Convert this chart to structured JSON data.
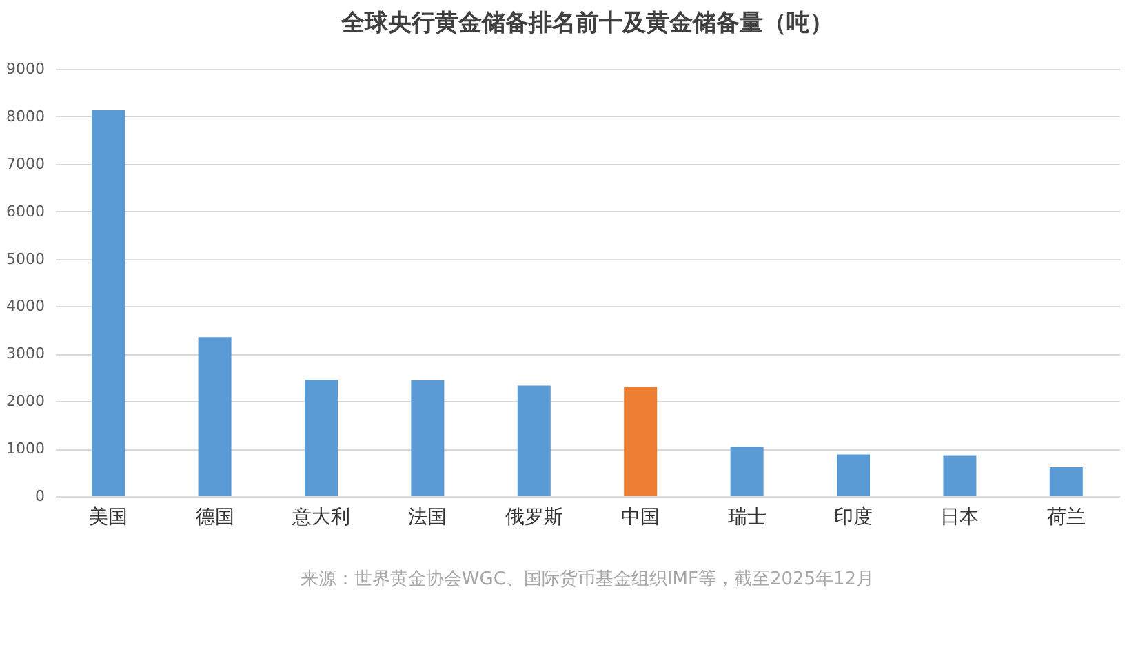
{
  "chart_data": {
    "type": "bar",
    "title": "全球央行黄金储备排名前十及黄金储备量（吨）",
    "categories": [
      "美国",
      "德国",
      "意大利",
      "法国",
      "俄罗斯",
      "中国",
      "瑞士",
      "印度",
      "日本",
      "荷兰"
    ],
    "values": [
      8130,
      3350,
      2450,
      2440,
      2330,
      2300,
      1040,
      880,
      850,
      610
    ],
    "colors": [
      "#5b9bd5",
      "#5b9bd5",
      "#5b9bd5",
      "#5b9bd5",
      "#5b9bd5",
      "#ed7d31",
      "#5b9bd5",
      "#5b9bd5",
      "#5b9bd5",
      "#5b9bd5"
    ],
    "ylim": [
      0,
      9000
    ],
    "yticks": [
      0,
      1000,
      2000,
      3000,
      4000,
      5000,
      6000,
      7000,
      8000,
      9000
    ],
    "grid": "y",
    "annotations": [
      "来源：世界黄金协会WGC、国际货币基金组织IMF等，截至2025年12月"
    ]
  }
}
